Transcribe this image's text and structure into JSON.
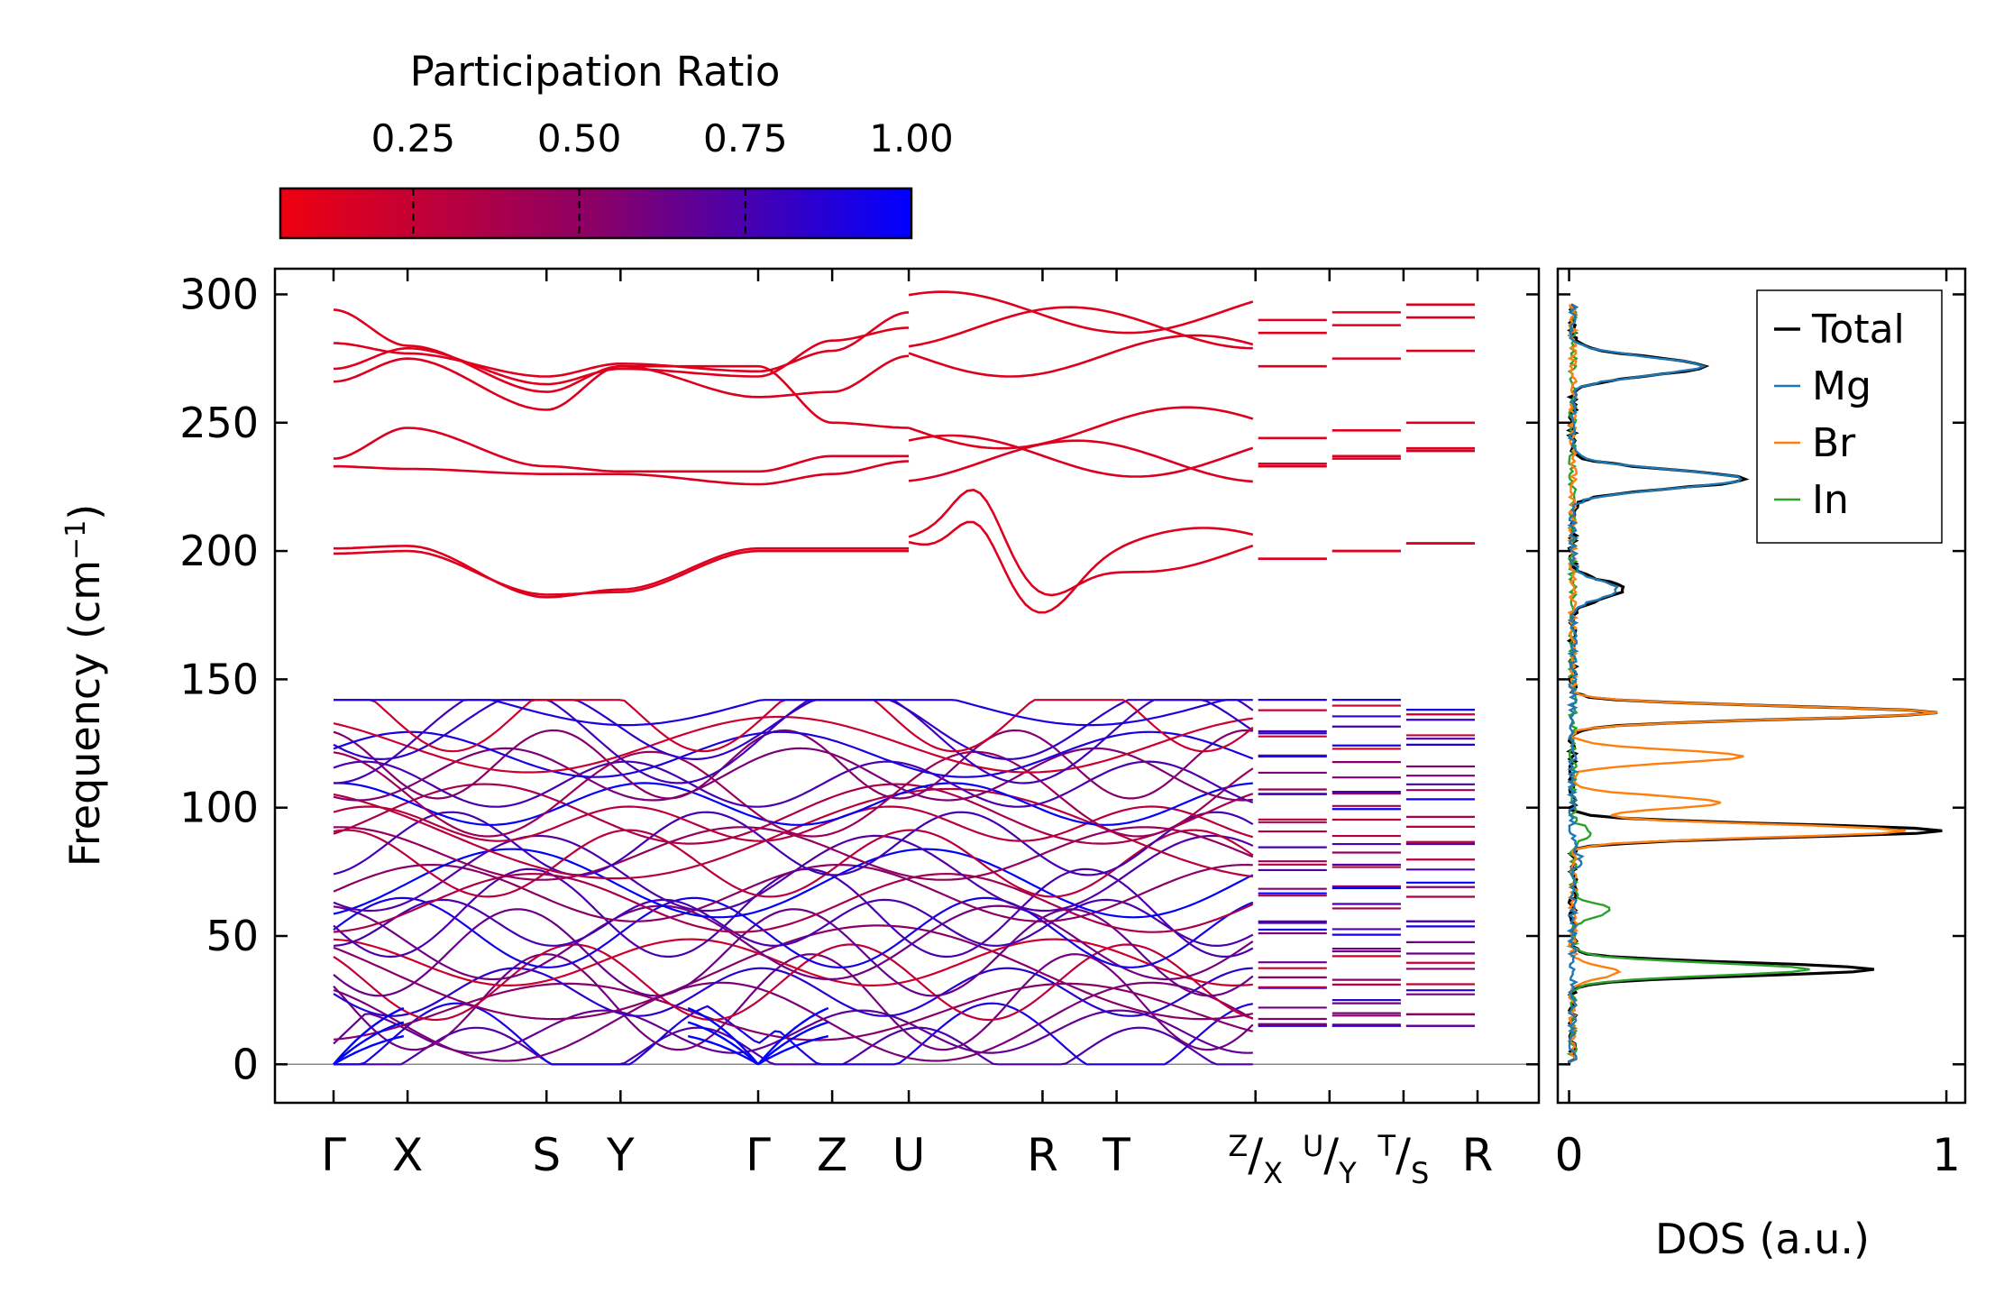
{
  "colorbar": {
    "title": "Participation Ratio",
    "ticks": [
      0.25,
      0.5,
      0.75,
      1.0
    ],
    "tick_labels": [
      "0.25",
      "0.50",
      "0.75",
      "1.00"
    ],
    "range": [
      0.05,
      1.0
    ],
    "colors": {
      "low": "#ee0000",
      "mid": "#8a0066",
      "high": "#0000ff"
    }
  },
  "chart_data": [
    {
      "type": "line",
      "subtype": "phonon-band-structure",
      "ylabel": "Frequency (cm",
      "ylabel_sup": "−1",
      "ylabel_end": ")",
      "ylim": [
        -15,
        310
      ],
      "yticks": [
        0,
        50,
        100,
        150,
        200,
        250,
        300
      ],
      "ytick_labels": [
        "0",
        "50",
        "100",
        "150",
        "200",
        "250",
        "300"
      ],
      "kpath_labels": [
        {
          "main": "Γ",
          "sup": "",
          "sub": ""
        },
        {
          "main": "X",
          "sup": "",
          "sub": ""
        },
        {
          "main": "S",
          "sup": "",
          "sub": ""
        },
        {
          "main": "Y",
          "sup": "",
          "sub": ""
        },
        {
          "main": "Γ",
          "sup": "",
          "sub": ""
        },
        {
          "main": "Z",
          "sup": "",
          "sub": ""
        },
        {
          "main": "U",
          "sup": "",
          "sub": ""
        },
        {
          "main": "R",
          "sup": "",
          "sub": ""
        },
        {
          "main": "T",
          "sup": "",
          "sub": ""
        },
        {
          "main": "/",
          "sup": "Z",
          "sub": "X"
        },
        {
          "main": "/",
          "sup": "U",
          "sub": "Y"
        },
        {
          "main": "/",
          "sup": "T",
          "sub": "S"
        },
        {
          "main": "R",
          "sup": "",
          "sub": ""
        }
      ],
      "kpath_positions": [
        0,
        0.57,
        1.64,
        2.21,
        3.27,
        3.84,
        4.43,
        5.46,
        6.03,
        7.1,
        7.67,
        8.24,
        8.81
      ],
      "segment_breaks": [
        3.84,
        7.1,
        7.67,
        8.24
      ],
      "zero_line": 0,
      "bands_high": [
        {
          "name": "band-294",
          "values": [
            294,
            280,
            262,
            272,
            272,
            250,
            248
          ],
          "pr": 0.12
        },
        {
          "name": "band-281",
          "values": [
            281,
            277,
            268,
            273,
            270,
            278,
            293
          ],
          "pr": 0.12
        },
        {
          "name": "band-271",
          "values": [
            271,
            279,
            265,
            271,
            268,
            282,
            287
          ],
          "pr": 0.12
        },
        {
          "name": "band-266",
          "values": [
            266,
            275,
            255,
            272,
            260,
            262,
            276
          ],
          "pr": 0.13
        },
        {
          "name": "band-236",
          "values": [
            236,
            248,
            233,
            231,
            231,
            237,
            237
          ],
          "pr": 0.14
        },
        {
          "name": "band-233",
          "values": [
            233,
            232,
            230,
            230,
            226,
            230,
            235
          ],
          "pr": 0.14
        },
        {
          "name": "band-201",
          "values": [
            201,
            202,
            182,
            185,
            201,
            201,
            201
          ],
          "pr": 0.12
        },
        {
          "name": "band-199",
          "values": [
            199,
            200,
            183,
            184,
            200,
            200,
            200
          ],
          "pr": 0.12
        }
      ],
      "bands_low_description": "approximately 36 branches spanning 0–142 cm−1, participation ratio 0.2–1.0",
      "frequency_range": [
        0,
        294
      ]
    },
    {
      "type": "line",
      "subtype": "density-of-states",
      "xlabel": "DOS (a.u.)",
      "xlim": [
        -0.03,
        1.05
      ],
      "xticks": [
        0,
        1
      ],
      "xtick_labels": [
        "0",
        "1"
      ],
      "legend": {
        "placement": "top-right"
      },
      "series": [
        {
          "name": "Total",
          "color": "#000000",
          "peaks": [
            [
              37,
              0.8
            ],
            [
              91,
              0.98
            ],
            [
              137,
              0.97
            ],
            [
              228,
              0.45
            ],
            [
              272,
              0.35
            ],
            [
              185,
              0.13
            ]
          ]
        },
        {
          "name": "Mg",
          "color": "#1f77b4",
          "peaks": [
            [
              228,
              0.45
            ],
            [
              272,
              0.34
            ],
            [
              185,
              0.12
            ],
            [
              80,
              0.02
            ]
          ]
        },
        {
          "name": "Br",
          "color": "#ff7f0e",
          "peaks": [
            [
              137,
              0.96
            ],
            [
              91,
              0.88
            ],
            [
              102,
              0.4
            ],
            [
              120,
              0.45
            ],
            [
              36,
              0.12
            ]
          ]
        },
        {
          "name": "In",
          "color": "#2ca02c",
          "peaks": [
            [
              37,
              0.62
            ],
            [
              60,
              0.1
            ],
            [
              90,
              0.05
            ]
          ]
        }
      ]
    }
  ]
}
